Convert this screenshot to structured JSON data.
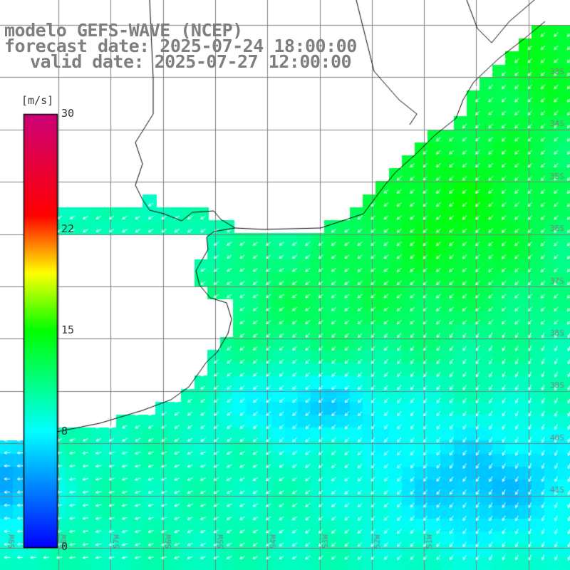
{
  "header": {
    "model": "modelo GEFS-WAVE (NCEP)",
    "forecast_date": "forecast date: 2025-07-24 18:00:00",
    "valid_date": "valid date: 2025-07-27 12:00:00"
  },
  "colorbar": {
    "units": "[m/s]",
    "ticks": [
      {
        "value": 30,
        "label": "30"
      },
      {
        "value": 22,
        "label": "22"
      },
      {
        "value": 15,
        "label": "15"
      },
      {
        "value": 8,
        "label": "8"
      },
      {
        "value": 0,
        "label": "0"
      }
    ],
    "range": [
      0,
      30
    ],
    "colors": [
      "#0000ff",
      "#00ffff",
      "#00ff00",
      "#ffff00",
      "#ff0000",
      "#cc0077"
    ]
  },
  "map": {
    "variable": "wind speed and direction",
    "colors": {
      "land": "#ffffff",
      "coastline": "#000000",
      "grid": "#808080",
      "vectors": "#ffffff"
    },
    "lat_labels": [
      "33S",
      "34S",
      "35S",
      "36S",
      "37S",
      "38S",
      "39S",
      "40S",
      "41S"
    ],
    "lon_labels": [
      "59W",
      "58W",
      "57W",
      "56W",
      "55W",
      "54W",
      "53W",
      "52W",
      "51W"
    ]
  }
}
